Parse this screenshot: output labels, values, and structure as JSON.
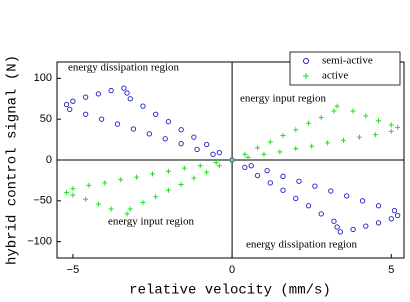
{
  "chart_data": {
    "type": "scatter",
    "xlabel": "relative velocity (mm/s)",
    "ylabel": "hybrid control signal (N)",
    "xlim": [
      -5.5,
      5.4
    ],
    "ylim": [
      -120,
      120
    ],
    "xticks": [
      {
        "value": -5,
        "label": "−5"
      },
      0,
      5
    ],
    "yticks": [
      {
        "value": -100,
        "label": "−100"
      },
      {
        "value": -50,
        "label": "−50"
      },
      0,
      50,
      100
    ],
    "legend": "upper right",
    "annotations": [
      "energy dissipation region",
      "energy input region",
      "energy input region",
      "energy dissipation region"
    ],
    "series": [
      {
        "name": "semi-active",
        "color": "#1c1cc8",
        "marker": "o",
        "x": [
          0,
          0.4,
          0.8,
          1.2,
          1.6,
          2,
          2.4,
          2.8,
          3.2,
          3.3,
          3.4,
          3.8,
          4.2,
          4.6,
          5,
          5.2,
          5.1,
          4.6,
          4.1,
          3.6,
          3.1,
          2.6,
          2.1,
          1.6,
          1.1,
          0.6,
          -0.4,
          -0.8,
          -1.2,
          -1.6,
          -2,
          -2.4,
          -2.8,
          -3.2,
          -3.3,
          -3.4,
          -3.8,
          -4.2,
          -4.6,
          -5,
          -5.2,
          -5.1,
          -4.6,
          -4.1,
          -3.6,
          -3.1,
          -2.6,
          -2.1,
          -1.6,
          -1.1,
          -0.6
        ],
        "y": [
          0,
          -9,
          -19,
          -28,
          -37,
          -47,
          -56,
          -66,
          -75,
          -82,
          -88,
          -85,
          -81,
          -77,
          -72,
          -68,
          -62,
          -56,
          -50,
          -44,
          -38,
          -32,
          -26,
          -20,
          -13,
          -7,
          9,
          19,
          28,
          37,
          47,
          56,
          66,
          75,
          82,
          88,
          85,
          81,
          77,
          72,
          68,
          62,
          56,
          50,
          44,
          38,
          32,
          26,
          20,
          13,
          7
        ]
      },
      {
        "name": "active",
        "color": "#22dd22",
        "marker": "+",
        "x": [
          0,
          0.4,
          0.8,
          1.2,
          1.6,
          2,
          2.4,
          2.8,
          3.2,
          3.3,
          3.8,
          4.2,
          4.6,
          5,
          5.2,
          5,
          4.5,
          4,
          3.5,
          3,
          2.5,
          2,
          1.5,
          1,
          0.5,
          -0.4,
          -0.8,
          -1.2,
          -1.6,
          -2,
          -2.4,
          -2.8,
          -3.2,
          -3.3,
          -3.8,
          -4.2,
          -4.6,
          -5,
          -5.2,
          -5,
          -4.5,
          -4,
          -3.5,
          -3,
          -2.5,
          -2,
          -1.5,
          -1,
          -0.5
        ],
        "y": [
          0,
          7,
          15,
          22,
          30,
          37,
          45,
          52,
          60,
          66,
          60,
          54,
          48,
          43,
          40,
          35,
          31,
          28,
          24,
          21,
          17,
          14,
          10,
          7,
          3,
          -7,
          -15,
          -22,
          -30,
          -37,
          -45,
          -52,
          -60,
          -66,
          -60,
          -54,
          -48,
          -43,
          -40,
          -35,
          -31,
          -28,
          -24,
          -21,
          -17,
          -14,
          -10,
          -7,
          -3
        ]
      }
    ]
  }
}
